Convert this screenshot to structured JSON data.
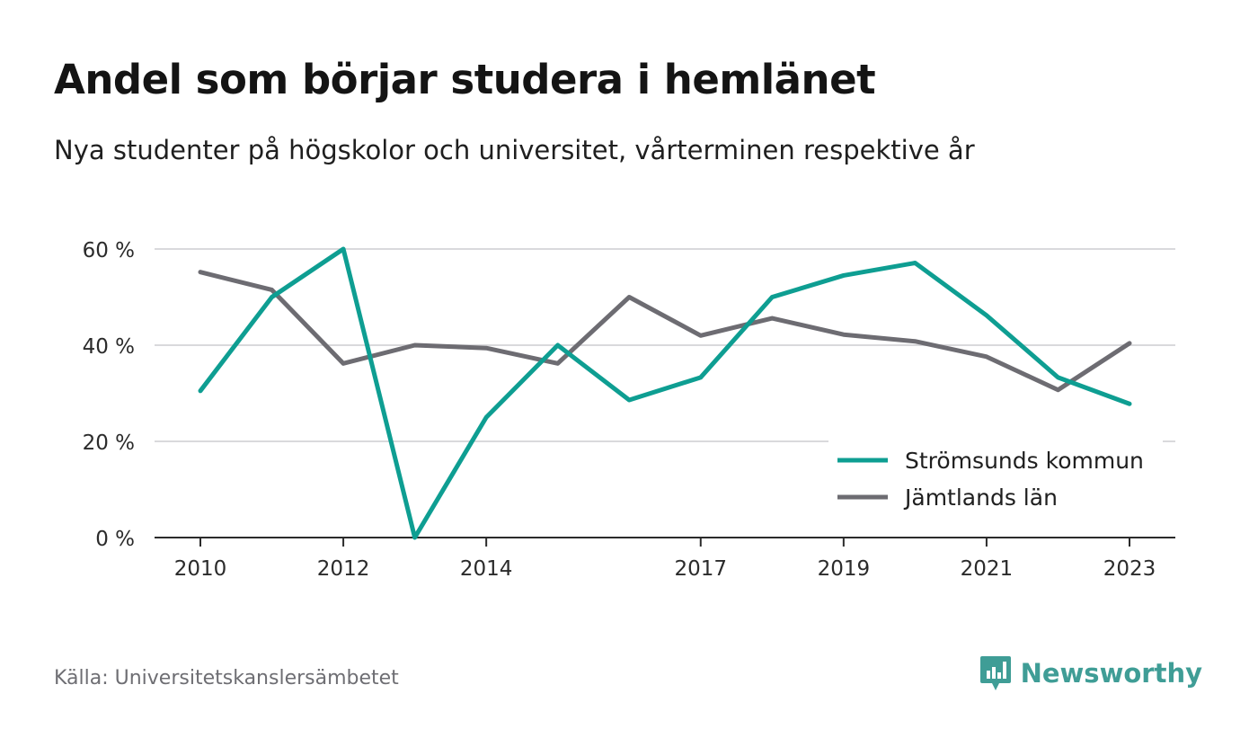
{
  "title": "Andel som börjar studera i hemlänet",
  "subtitle": "Nya studenter på högskolor och universitet, vårterminen respektive år",
  "source": "Källa: Universitetskanslersämbetet",
  "brand": {
    "name": "Newsworthy",
    "icon": "newsworthy-logo-icon",
    "color": "#3f9d96"
  },
  "chart_data": {
    "type": "line",
    "x": [
      2010,
      2011,
      2012,
      2013,
      2014,
      2015,
      2016,
      2017,
      2018,
      2019,
      2020,
      2021,
      2022,
      2023
    ],
    "xticks": [
      "2010",
      "2012",
      "2014",
      "2017",
      "2019",
      "2021",
      "2023"
    ],
    "yticks": [
      0,
      20,
      40,
      60
    ],
    "ytick_labels": [
      "0 %",
      "20 %",
      "40 %",
      "60 %"
    ],
    "ylim": [
      0,
      60
    ],
    "grid": true,
    "legend_position": "bottom-right",
    "series": [
      {
        "name": "Strömsunds kommun",
        "color": "#0e9e92",
        "values": [
          30.5,
          50.0,
          60.0,
          0.0,
          25.0,
          40.0,
          28.6,
          33.3,
          50.0,
          54.5,
          57.1,
          46.2,
          33.3,
          27.8
        ]
      },
      {
        "name": "Jämtlands län",
        "color": "#6d6c72",
        "values": [
          55.2,
          51.5,
          36.2,
          40.0,
          39.4,
          36.2,
          50.0,
          42.0,
          45.6,
          42.2,
          40.8,
          37.6,
          30.7,
          40.4
        ]
      }
    ]
  }
}
